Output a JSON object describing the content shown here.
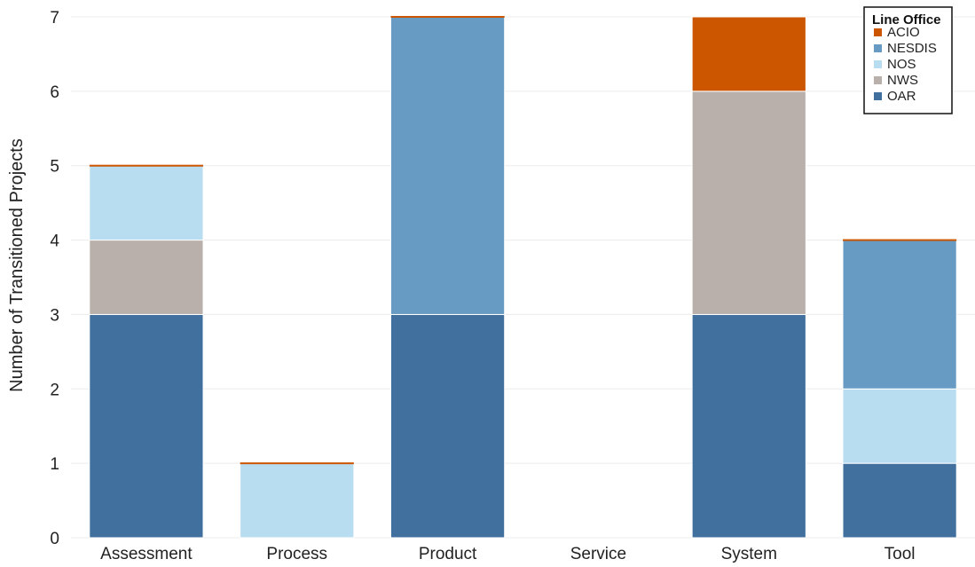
{
  "chart_data": {
    "type": "bar",
    "stacked": true,
    "categories": [
      "Assessment",
      "Process",
      "Product",
      "Service",
      "System",
      "Tool"
    ],
    "series": [
      {
        "name": "OAR",
        "color": "#41709f",
        "values": [
          3,
          0,
          3,
          0,
          3,
          1
        ]
      },
      {
        "name": "NWS",
        "color": "#b9b0ab",
        "values": [
          1,
          0,
          0,
          0,
          3,
          0
        ]
      },
      {
        "name": "NOS",
        "color": "#b8dcf0",
        "values": [
          1,
          1,
          0,
          0,
          0,
          1
        ]
      },
      {
        "name": "NESDIS",
        "color": "#689bc3",
        "values": [
          0,
          0,
          4,
          0,
          0,
          2
        ]
      },
      {
        "name": "ACIO",
        "color": "#cc5500",
        "values": [
          0,
          0,
          0,
          0,
          1,
          0
        ]
      }
    ],
    "legend_order": [
      "ACIO",
      "NESDIS",
      "NOS",
      "NWS",
      "OAR"
    ],
    "legend_title": "Line Office",
    "legend_position": "top-right",
    "ylabel": "Number of Transitioned Projects",
    "xlabel": "",
    "ylim": [
      0,
      7
    ],
    "yticks": [
      0,
      1,
      2,
      3,
      4,
      5,
      6,
      7
    ],
    "grid": true
  }
}
